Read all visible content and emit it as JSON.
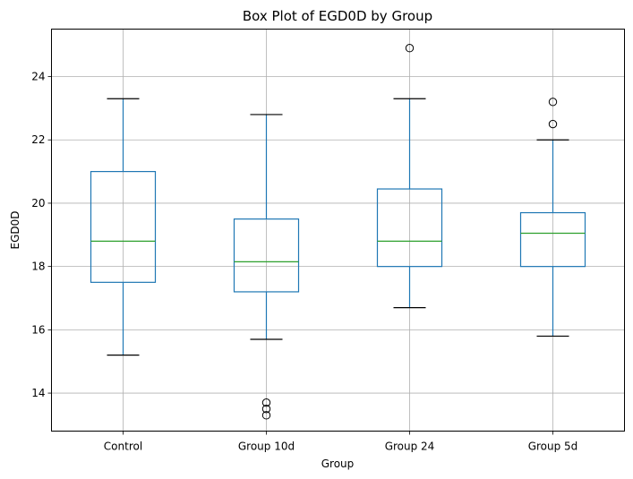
{
  "chart_data": {
    "type": "box",
    "title": "Box Plot of EGD0D by Group",
    "xlabel": "Group",
    "ylabel": "EGD0D",
    "ylim": [
      12.8,
      25.5
    ],
    "yticks": [
      14,
      16,
      18,
      20,
      22,
      24
    ],
    "grid": true,
    "colors": {
      "box": "#1f77b4",
      "median": "#2ca02c",
      "cap": "#000000",
      "grid": "#b0b0b0"
    },
    "categories": [
      "Control",
      "Group 10d",
      "Group 24",
      "Group 5d"
    ],
    "boxes": [
      {
        "name": "Control",
        "whisker_low": 15.2,
        "q1": 17.5,
        "median": 18.8,
        "q3": 21.0,
        "whisker_high": 23.3,
        "outliers": []
      },
      {
        "name": "Group 10d",
        "whisker_low": 15.7,
        "q1": 17.2,
        "median": 18.15,
        "q3": 19.5,
        "whisker_high": 22.8,
        "outliers": [
          13.7,
          13.5,
          13.3
        ]
      },
      {
        "name": "Group 24",
        "whisker_low": 16.7,
        "q1": 18.0,
        "median": 18.8,
        "q3": 20.45,
        "whisker_high": 23.3,
        "outliers": [
          24.9
        ]
      },
      {
        "name": "Group 5d",
        "whisker_low": 15.8,
        "q1": 18.0,
        "median": 19.05,
        "q3": 19.7,
        "whisker_high": 22.0,
        "outliers": [
          23.2,
          22.5
        ]
      }
    ]
  }
}
